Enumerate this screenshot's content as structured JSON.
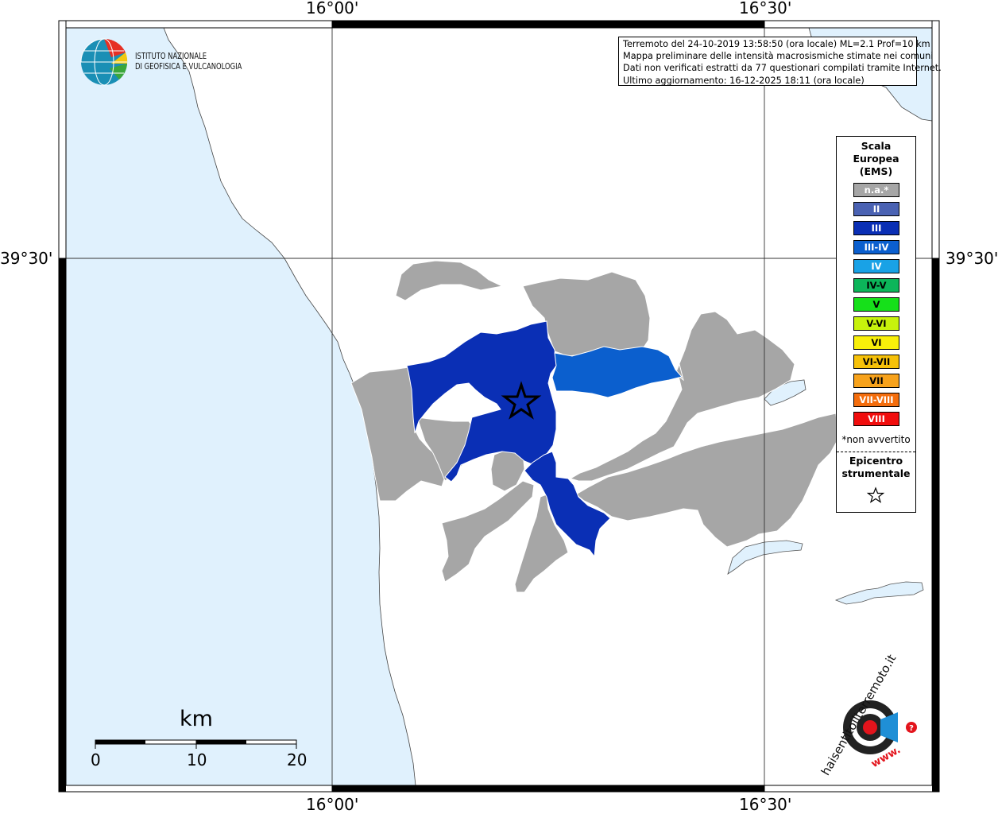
{
  "map": {
    "axis_top": [
      "16°00'",
      "16°30'"
    ],
    "axis_bottom": [
      "16°00'",
      "16°30'"
    ],
    "axis_left": "39°30'",
    "axis_right": "39°30'"
  },
  "logo": {
    "line1": "ISTITUTO NAZIONALE",
    "line2": "DI GEOFISICA E VULCANOLOGIA"
  },
  "info": {
    "line1": "Terremoto del 24-10-2019 13:58:50 (ora locale) ML=2.1 Prof=10 km",
    "line2": "Mappa preliminare delle intensità macrosismiche stimate nei comuni",
    "line3": "Dati non verificati estratti da 77 questionari compilati tramite Internet.",
    "line4": "Ultimo aggiornamento: 16-12-2025 18:11 (ora locale)"
  },
  "legend": {
    "title1": "Scala",
    "title2": "Europea",
    "title3": "(EMS)",
    "classes": [
      {
        "label": "n.a.*",
        "color": "#a6a6a6"
      },
      {
        "label": "II",
        "color": "#4a62b3"
      },
      {
        "label": "III",
        "color": "#0a2fb5"
      },
      {
        "label": "III-IV",
        "color": "#0b5fce"
      },
      {
        "label": "IV",
        "color": "#19a2e6"
      },
      {
        "label": "IV-V",
        "color": "#0cb55a"
      },
      {
        "label": "V",
        "color": "#16e01a"
      },
      {
        "label": "V-VI",
        "color": "#c7f20c"
      },
      {
        "label": "VI",
        "color": "#f8ef0a"
      },
      {
        "label": "VI-VII",
        "color": "#f6c109"
      },
      {
        "label": "VII",
        "color": "#f7a21b"
      },
      {
        "label": "VII-VIII",
        "color": "#f46d0c"
      },
      {
        "label": "VIII",
        "color": "#f10d0d"
      }
    ],
    "note": "*non avvertito",
    "epicentre1": "Epicentro",
    "epicentre2": "strumentale"
  },
  "scale_bar": {
    "unit": "km",
    "ticks": [
      "0",
      "10",
      "20"
    ]
  },
  "watermark": {
    "text": "haisentitoilterremoto.it",
    "url": "www."
  },
  "colors": {
    "sea": "#e0f1fd",
    "land": "#ffffff",
    "not_felt": "#a6a6a6",
    "ems_III": "#0a2fb5",
    "ems_III_IV": "#0b5fce"
  }
}
